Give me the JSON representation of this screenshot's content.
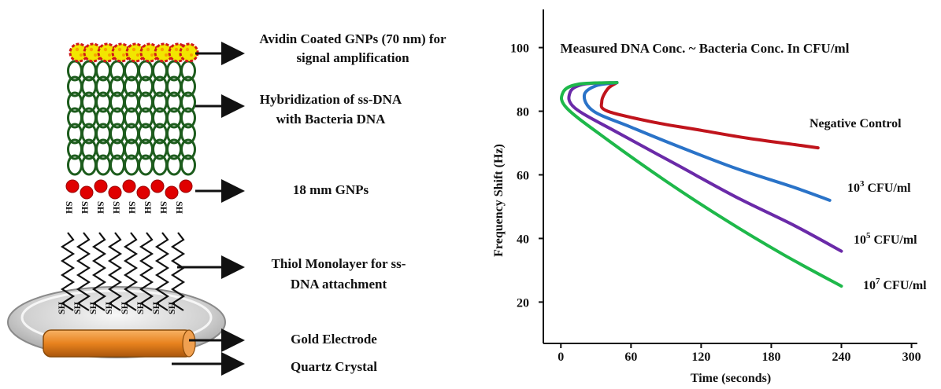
{
  "diagram": {
    "labels": {
      "avidin": [
        "Avidin Coated GNPs (70 nm) for",
        "signal amplification"
      ],
      "hybridization": [
        "Hybridization of ss-DNA",
        "with Bacteria DNA"
      ],
      "gnps": "18 mm GNPs",
      "thiol": [
        "Thiol Monolayer  for ss-",
        "DNA attachment"
      ],
      "gold": "Gold Electrode",
      "quartz": "Quartz Crystal"
    },
    "thiol_group_label": "SH",
    "colors": {
      "avidin_fill": "#f2e600",
      "avidin_outline": "#d01818",
      "dna": "#1d5c1d",
      "gnp": "#e00000",
      "electrode": "#e8821e",
      "crystal": "#d9d9d9"
    }
  },
  "chart_data": {
    "type": "line",
    "title": "Measured DNA Conc. ~  Bacteria Conc. In CFU/ml",
    "xlabel": "Time (seconds)",
    "ylabel": "Frequency Shift (Hz)",
    "xticks": [
      0,
      60,
      120,
      180,
      240,
      300
    ],
    "yticks": [
      20,
      40,
      60,
      80,
      100
    ],
    "xlim": [
      -15,
      305
    ],
    "ylim": [
      7,
      112
    ],
    "grid": false,
    "legend": "inline labels at line ends",
    "series": [
      {
        "name": "Negative Control",
        "color": "#c0141c",
        "points": [
          [
            48,
            89
          ],
          [
            40,
            87
          ],
          [
            35,
            83
          ],
          [
            40,
            80
          ],
          [
            80,
            76.5
          ],
          [
            120,
            74
          ],
          [
            160,
            71.5
          ],
          [
            200,
            69.5
          ],
          [
            220,
            68.5
          ]
        ]
      },
      {
        "name": "10^3 CFU/ml",
        "label_base": "10",
        "label_sup": "3",
        "label_rest": " CFU/ml",
        "color": "#2a73c8",
        "points": [
          [
            48,
            89
          ],
          [
            30,
            88
          ],
          [
            20,
            85
          ],
          [
            28,
            80
          ],
          [
            60,
            75
          ],
          [
            100,
            69
          ],
          [
            150,
            62
          ],
          [
            200,
            56
          ],
          [
            230,
            52
          ]
        ]
      },
      {
        "name": "10^5 CFU/ml",
        "label_base": "10",
        "label_sup": "5",
        "label_rest": " CFU/ml",
        "color": "#6a2aa8",
        "points": [
          [
            48,
            89
          ],
          [
            20,
            88.5
          ],
          [
            8,
            86
          ],
          [
            12,
            81
          ],
          [
            50,
            73
          ],
          [
            100,
            63
          ],
          [
            150,
            53
          ],
          [
            200,
            44
          ],
          [
            240,
            36
          ]
        ]
      },
      {
        "name": "10^7 CFU/ml",
        "label_base": "10",
        "label_sup": "7",
        "label_rest": " CFU/ml",
        "color": "#1eb84a",
        "points": [
          [
            48,
            89
          ],
          [
            15,
            88.5
          ],
          [
            2,
            86
          ],
          [
            5,
            81
          ],
          [
            40,
            71
          ],
          [
            90,
            58
          ],
          [
            140,
            46
          ],
          [
            190,
            35
          ],
          [
            240,
            25
          ]
        ]
      }
    ]
  }
}
